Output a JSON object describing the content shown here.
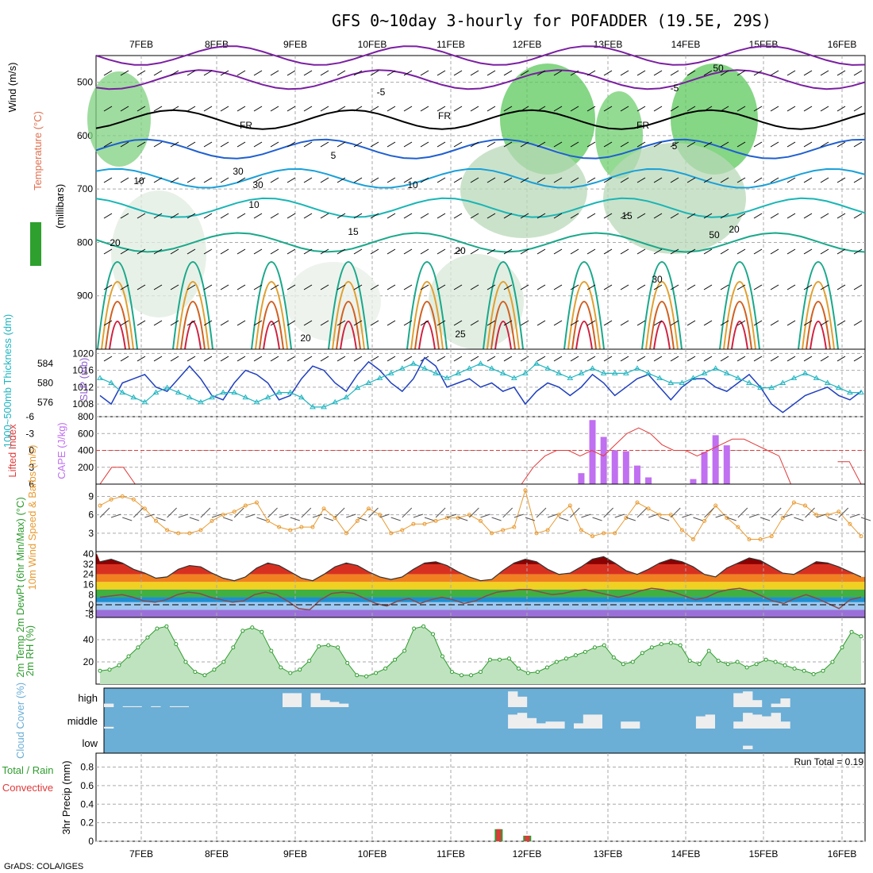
{
  "title": "GFS 0~10day 3-hourly for POFADDER (19.5E, 29S)",
  "credit": "GrADS: COLA/IGES",
  "dates": [
    "7FEB",
    "8FEB",
    "9FEB",
    "10FEB",
    "11FEB",
    "12FEB",
    "13FEB",
    "14FEB",
    "15FEB",
    "16FEB"
  ],
  "colors": {
    "slp": "#1f3fbf",
    "thickness": "#20b5c0",
    "lifted_index": "#e03a3a",
    "cape": "#c070f0",
    "wind": "#e89a30",
    "rh": "#2e9c2e",
    "cloud_bg": "#6baed6",
    "precip_total": "#2e9c2e",
    "precip_conv": "#e03a3a"
  },
  "chart_data": [
    {
      "type": "area",
      "panel": "upper-air",
      "ylabel_parts": [
        "Wind (m/s)",
        "Temperature (°C)",
        "RH (%)"
      ],
      "ylabel_axis": "(millibars)",
      "yticks": [
        500,
        600,
        700,
        800,
        900
      ],
      "ylim": [
        1000,
        450
      ],
      "contour_labels": [
        "-5",
        "-5",
        "FR",
        "FR",
        "FR",
        "5",
        "5",
        "10",
        "10",
        "10",
        "15",
        "15",
        "20",
        "20",
        "20",
        "20",
        "25",
        "30",
        "50",
        "50",
        "30",
        "30"
      ]
    },
    {
      "type": "line",
      "panel": "slp-thickness",
      "ylabel_left": "1000~500mb Thickness (dm)",
      "ylabel_right": "SLP (mb)",
      "yticks_left": [
        576,
        580,
        584
      ],
      "yticks_right": [
        1008,
        1012,
        1016,
        1020
      ],
      "series": [
        {
          "name": "SLP",
          "values": [
            1010,
            1008,
            1013,
            1014,
            1015,
            1012,
            1011,
            1014,
            1017,
            1014,
            1010,
            1009,
            1013,
            1016,
            1015,
            1013,
            1009,
            1010,
            1014,
            1017,
            1016,
            1013,
            1011,
            1015,
            1018,
            1016,
            1013,
            1011,
            1014,
            1019,
            1017,
            1012,
            1013,
            1014,
            1012,
            1013,
            1011,
            1012,
            1008,
            1011,
            1013,
            1012,
            1010,
            1012,
            1015,
            1013,
            1010,
            1012,
            1014,
            1015,
            1012,
            1009,
            1012,
            1014,
            1014,
            1012,
            1011,
            1013,
            1015,
            1012,
            1008,
            1006,
            1008,
            1010,
            1011,
            1012,
            1010,
            1009,
            1011
          ]
        },
        {
          "name": "Thickness",
          "values": [
            581,
            580,
            578,
            577,
            576,
            578,
            579,
            578,
            577,
            576,
            577,
            578,
            578,
            577,
            576,
            577,
            578,
            578,
            577,
            575,
            575,
            576,
            577,
            579,
            580,
            581,
            582,
            583,
            584,
            583,
            582,
            581,
            582,
            583,
            584,
            583,
            582,
            581,
            582,
            584,
            583,
            582,
            581,
            582,
            583,
            582,
            582,
            582,
            583,
            582,
            581,
            580,
            580,
            581,
            582,
            583,
            582,
            581,
            580,
            579,
            579,
            580,
            581,
            582,
            581,
            580,
            579,
            578,
            578
          ]
        }
      ]
    },
    {
      "type": "bar",
      "panel": "lifted-index-cape",
      "ylabel_left": "Lifted Index",
      "ylabel_right": "CAPE (J/kg)",
      "yticks_left": [
        "-6",
        "-3",
        "0",
        "3",
        "6"
      ],
      "yticks_right": [
        200,
        400,
        600,
        800
      ],
      "lifted_index": [
        6,
        3,
        3,
        6,
        null,
        null,
        null,
        null,
        null,
        null,
        null,
        null,
        null,
        null,
        null,
        null,
        null,
        null,
        null,
        null,
        null,
        null,
        null,
        null,
        null,
        null,
        null,
        null,
        null,
        null,
        null,
        null,
        null,
        null,
        null,
        null,
        6,
        3,
        1,
        0,
        0,
        1,
        0,
        1,
        -1,
        -3,
        -4,
        -3,
        -1,
        0,
        0,
        1,
        0,
        -1,
        -2,
        -2,
        -1,
        0,
        1,
        6,
        null,
        null,
        null,
        2,
        2,
        6
      ],
      "cape": [
        0,
        0,
        0,
        0,
        0,
        0,
        0,
        0,
        0,
        0,
        0,
        0,
        0,
        0,
        0,
        0,
        0,
        0,
        0,
        0,
        0,
        0,
        0,
        0,
        0,
        0,
        0,
        0,
        0,
        0,
        0,
        0,
        0,
        0,
        0,
        0,
        0,
        0,
        0,
        0,
        0,
        0,
        0,
        130,
        760,
        560,
        400,
        390,
        220,
        80,
        0,
        0,
        0,
        60,
        380,
        580,
        460,
        0,
        0,
        0,
        0,
        0,
        0,
        0,
        0,
        0,
        0,
        0,
        0
      ]
    },
    {
      "type": "line",
      "panel": "wind",
      "ylabel": "10m Wind Speed & Barbs (m/s)",
      "yticks": [
        3,
        6,
        9
      ],
      "values": [
        7.5,
        8.5,
        9,
        8.5,
        7,
        5,
        3.5,
        3,
        3,
        3.5,
        5,
        6,
        6.5,
        7.5,
        8,
        5,
        4,
        3.5,
        4,
        4,
        7,
        5.5,
        3,
        5,
        7,
        6,
        3,
        3.5,
        4.5,
        4.5,
        5,
        5.5,
        5.5,
        6,
        5,
        3,
        3.5,
        4,
        10,
        3,
        3.5,
        6,
        7.5,
        3.5,
        2.5,
        3,
        3,
        5.5,
        8,
        7,
        6,
        6,
        3.5,
        2,
        5,
        7.5,
        5.5,
        4,
        2,
        2,
        2.5,
        5.5,
        8,
        7.5,
        6,
        6,
        6.5,
        4.5,
        2.5
      ]
    },
    {
      "type": "area",
      "panel": "temperature",
      "ylabel": "2m Temp 2m DewPt (6hr Min/Max) (°C)",
      "yticks": [
        -8,
        -4,
        0,
        8,
        16,
        24,
        32,
        40
      ],
      "temp": [
        34,
        36,
        33,
        28,
        25,
        21,
        22,
        28,
        31,
        30,
        25,
        21,
        19,
        22,
        29,
        33,
        31,
        26,
        21,
        19,
        24,
        30,
        33,
        31,
        26,
        22,
        20,
        22,
        28,
        33,
        34,
        31,
        26,
        22,
        19,
        20,
        27,
        33,
        36,
        34,
        28,
        24,
        25,
        30,
        36,
        38,
        33,
        27,
        24,
        28,
        33,
        36,
        34,
        30,
        24,
        22,
        29,
        33,
        37,
        35,
        30,
        25,
        24,
        29,
        34,
        33,
        30,
        26,
        22
      ],
      "dewpt": [
        6,
        7,
        8,
        6,
        3,
        2,
        4,
        8,
        10,
        9,
        6,
        4,
        2,
        3,
        8,
        10,
        8,
        3,
        -3,
        -4,
        4,
        9,
        10,
        9,
        5,
        1,
        -1,
        3,
        5,
        1,
        4,
        6,
        4,
        1,
        3,
        7,
        10,
        11,
        12,
        12,
        10,
        8,
        9,
        11,
        12,
        10,
        8,
        6,
        8,
        11,
        13,
        12,
        10,
        7,
        4,
        6,
        10,
        12,
        13,
        11,
        7,
        3,
        1,
        5,
        8,
        5,
        1,
        -3,
        4,
        6
      ]
    },
    {
      "type": "area",
      "panel": "relative-humidity",
      "ylabel": "2m RH (%)",
      "yticks": [
        20,
        40
      ],
      "values": [
        12,
        13,
        17,
        25,
        33,
        42,
        50,
        52,
        36,
        20,
        11,
        8,
        13,
        20,
        33,
        48,
        51,
        47,
        30,
        15,
        10,
        13,
        21,
        34,
        35,
        33,
        19,
        8,
        7,
        10,
        14,
        22,
        30,
        50,
        52,
        45,
        25,
        11,
        8,
        8,
        11,
        22,
        22,
        23,
        14,
        10,
        11,
        15,
        20,
        23,
        26,
        29,
        33,
        35,
        24,
        18,
        20,
        28,
        33,
        36,
        37,
        35,
        21,
        18,
        30,
        21,
        18,
        20,
        15,
        18,
        22,
        20,
        17,
        14,
        12,
        9,
        12,
        20,
        33,
        47,
        43
      ]
    },
    {
      "type": "bar",
      "panel": "cloud-cover",
      "ylabel": "Cloud Cover (%)",
      "yticks": [
        "high",
        "middle",
        "low"
      ],
      "high": [
        20,
        0,
        5,
        5,
        0,
        5,
        0,
        5,
        5,
        0,
        0,
        0,
        0,
        0,
        0,
        0,
        0,
        0,
        0,
        80,
        80,
        0,
        80,
        40,
        30,
        20,
        0,
        0,
        0,
        0,
        0,
        0,
        0,
        0,
        0,
        0,
        0,
        0,
        0,
        0,
        0,
        0,
        0,
        90,
        60,
        0,
        0,
        0,
        0,
        0,
        0,
        0,
        0,
        0,
        0,
        0,
        0,
        0,
        0,
        0,
        0,
        0,
        0,
        0,
        0,
        0,
        0,
        80,
        90,
        40,
        0,
        20,
        50,
        0,
        0,
        0,
        0,
        0,
        0,
        0,
        0
      ],
      "middle": [
        10,
        0,
        0,
        0,
        0,
        0,
        0,
        0,
        0,
        0,
        0,
        0,
        0,
        0,
        0,
        0,
        0,
        0,
        0,
        0,
        0,
        0,
        0,
        0,
        0,
        0,
        0,
        0,
        0,
        0,
        0,
        0,
        0,
        0,
        0,
        0,
        0,
        0,
        0,
        0,
        0,
        0,
        0,
        80,
        90,
        60,
        30,
        40,
        40,
        0,
        30,
        80,
        80,
        0,
        0,
        40,
        40,
        0,
        0,
        0,
        0,
        0,
        0,
        70,
        80,
        0,
        0,
        40,
        90,
        80,
        70,
        90,
        40,
        0,
        0,
        0,
        0,
        0,
        0,
        0,
        0
      ],
      "low": [
        0,
        0,
        0,
        0,
        0,
        0,
        0,
        0,
        0,
        0,
        0,
        0,
        0,
        0,
        0,
        0,
        0,
        0,
        0,
        0,
        0,
        0,
        0,
        0,
        0,
        0,
        0,
        0,
        0,
        0,
        0,
        0,
        0,
        0,
        0,
        0,
        0,
        0,
        0,
        0,
        0,
        0,
        0,
        0,
        0,
        0,
        0,
        0,
        0,
        0,
        0,
        0,
        0,
        0,
        0,
        0,
        0,
        0,
        0,
        0,
        0,
        0,
        0,
        0,
        0,
        0,
        0,
        0,
        20,
        0,
        0,
        0,
        0,
        0,
        0,
        0,
        0,
        0,
        0,
        0,
        0
      ]
    },
    {
      "type": "bar",
      "panel": "precipitation",
      "ylabel_left": "Total / Rain",
      "ylabel_left2": "Convective",
      "ylabel": "3hr Precip (mm)",
      "yticks": [
        0,
        0.2,
        0.4,
        0.6,
        0.8
      ],
      "annotation": "Run Total = 0.19",
      "values": [
        0,
        0,
        0,
        0,
        0,
        0,
        0,
        0,
        0,
        0,
        0,
        0,
        0,
        0,
        0,
        0,
        0,
        0,
        0,
        0,
        0,
        0,
        0,
        0,
        0,
        0,
        0,
        0,
        0,
        0,
        0,
        0,
        0,
        0,
        0,
        0,
        0,
        0,
        0,
        0,
        0,
        0,
        0.13,
        0,
        0,
        0.06,
        0,
        0,
        0,
        0,
        0,
        0,
        0,
        0,
        0,
        0,
        0,
        0,
        0,
        0,
        0,
        0,
        0,
        0,
        0,
        0,
        0,
        0,
        0,
        0,
        0,
        0,
        0,
        0,
        0,
        0,
        0,
        0,
        0,
        0,
        0
      ]
    }
  ]
}
